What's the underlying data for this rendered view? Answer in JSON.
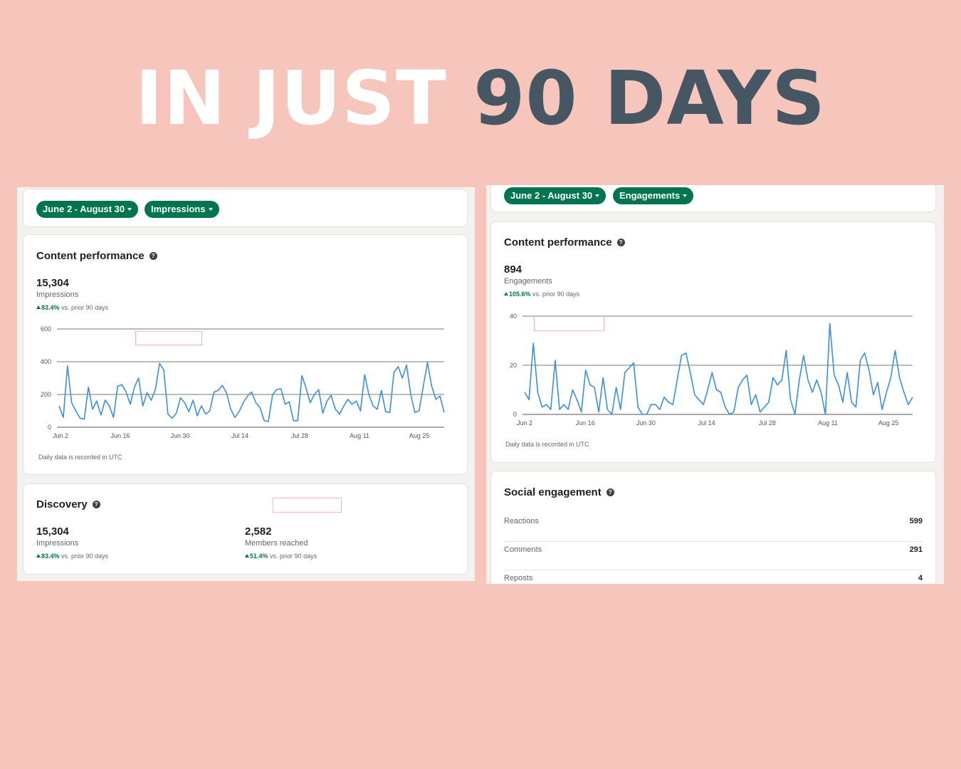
{
  "headline": {
    "part1": "IN JUST",
    "part2": "90 DAYS"
  },
  "left": {
    "date_filter": "June 2 - August 30",
    "metric_filter": "Impressions",
    "content": {
      "title": "Content performance",
      "value": "15,304",
      "label": "Impressions",
      "delta": "83.4%",
      "delta_suffix": "vs. prior 90 days",
      "note": "Daily data is recorded in UTC"
    },
    "discovery": {
      "title": "Discovery",
      "impressions": {
        "value": "15,304",
        "label": "Impressions",
        "delta": "83.4%",
        "suffix": "vs. prior 90 days"
      },
      "members": {
        "value": "2,582",
        "label": "Members reached",
        "delta": "51.4%",
        "suffix": "vs. prior 90 days"
      }
    }
  },
  "right": {
    "date_filter": "June 2 - August 30",
    "metric_filter": "Engagements",
    "content": {
      "title": "Content performance",
      "value": "894",
      "label": "Engagements",
      "delta": "105.6%",
      "delta_suffix": "vs. prior 90 days",
      "note": "Daily data is recorded in UTC"
    },
    "social": {
      "title": "Social engagement",
      "rows": [
        {
          "label": "Reactions",
          "value": "599"
        },
        {
          "label": "Comments",
          "value": "291"
        },
        {
          "label": "Reposts",
          "value": "4"
        }
      ]
    }
  },
  "chart_data": [
    {
      "type": "line",
      "x_tick_labels": [
        "Jun 2",
        "Jun 16",
        "Jun 30",
        "Jul 14",
        "Jul 28",
        "Aug 11",
        "Aug 25"
      ],
      "ylim": [
        0,
        600
      ],
      "y_ticks": [
        0,
        200,
        400,
        600
      ],
      "color": "#3d8fd9",
      "series": [
        {
          "values": [
            130,
            60,
            375,
            150,
            100,
            55,
            50,
            245,
            110,
            160,
            75,
            165,
            130,
            60,
            250,
            260,
            215,
            140,
            245,
            300,
            130,
            210,
            165,
            230,
            390,
            350,
            80,
            55,
            85,
            180,
            150,
            95,
            165,
            70,
            130,
            80,
            100,
            215,
            225,
            255,
            210,
            110,
            60,
            95,
            150,
            190,
            215,
            150,
            120,
            40,
            35,
            200,
            230,
            235,
            140,
            155,
            40,
            40,
            315,
            240,
            150,
            200,
            230,
            85,
            160,
            195,
            110,
            80,
            130,
            170,
            140,
            160,
            100,
            320,
            200,
            130,
            110,
            225,
            95,
            90,
            335,
            370,
            300,
            380,
            200,
            90,
            100,
            250,
            395,
            250,
            170,
            190,
            90
          ]
        }
      ]
    },
    {
      "type": "line",
      "x_tick_labels": [
        "Jun 2",
        "Jun 16",
        "Jun 30",
        "Jul 14",
        "Jul 28",
        "Aug 11",
        "Aug 25"
      ],
      "ylim": [
        0,
        40
      ],
      "y_ticks": [
        0,
        20,
        40
      ],
      "color": "#3d8fd9",
      "series": [
        {
          "values": [
            9,
            6,
            29,
            9,
            3,
            4,
            2,
            22,
            2,
            4,
            2,
            10,
            6,
            1,
            18,
            12,
            11,
            1,
            15,
            2,
            0,
            11,
            2,
            17,
            19,
            21,
            3,
            0,
            0,
            4,
            4,
            2,
            7,
            5,
            4,
            14,
            24,
            25,
            17,
            8,
            6,
            4,
            10,
            17,
            10,
            9,
            3,
            0,
            1,
            11,
            14,
            16,
            4,
            8,
            1,
            3,
            5,
            15,
            12,
            14,
            26,
            6,
            0,
            14,
            24,
            14,
            9,
            14,
            9,
            0,
            37,
            16,
            12,
            5,
            17,
            5,
            3,
            22,
            25,
            18,
            8,
            13,
            2,
            9,
            15,
            26,
            15,
            9,
            4,
            7
          ]
        }
      ]
    }
  ]
}
